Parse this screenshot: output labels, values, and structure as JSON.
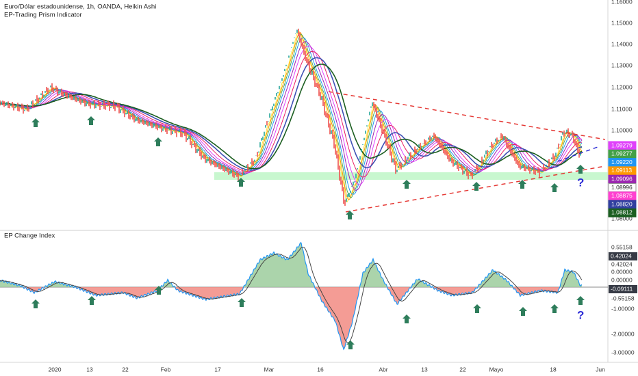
{
  "header": {
    "title": "Euro/Dólar estadounidense, 1h, OANDA, Heikin Ashi",
    "indicator": "EP-Trading Prism Indicator"
  },
  "price_axis": {
    "labels": [
      "1.16000",
      "1.15000",
      "1.14000",
      "1.13000",
      "1.12000",
      "1.11000",
      "1.10000",
      "1.08000"
    ],
    "tags": [
      {
        "label": "1.09279",
        "color": "#e040fb"
      },
      {
        "label": "1.09277",
        "color": "#43a047"
      },
      {
        "label": "1.09220",
        "color": "#2196f3"
      },
      {
        "label": "1.09113",
        "color": "#ff9800"
      },
      {
        "label": "1.09096",
        "color": "#9c27b0"
      },
      {
        "label": "1.08996",
        "color": "#ffffff"
      },
      {
        "label": "1.08875",
        "color": "#ff40d0"
      },
      {
        "label": "1.08820",
        "color": "#303f9f"
      },
      {
        "label": "1.08812",
        "color": "#1b5e20"
      }
    ]
  },
  "lower_pane": {
    "title": "EP Change Index",
    "labels": [
      "0.55158",
      "0.42024",
      "0.00000",
      "0.00000",
      "-0.55158",
      "-1.00000",
      "-2.00000",
      "-3.00000"
    ],
    "tags": [
      {
        "label": "0.42024",
        "color": "#363a45"
      },
      {
        "label": "-0.09111",
        "color": "#363a45"
      }
    ]
  },
  "time_axis": {
    "labels": [
      "2020",
      "13",
      "22",
      "Feb",
      "17",
      "Mar",
      "16",
      "Abr",
      "13",
      "22",
      "Mayo",
      "18",
      "Jun"
    ]
  },
  "annotations": {
    "question": "?"
  }
}
